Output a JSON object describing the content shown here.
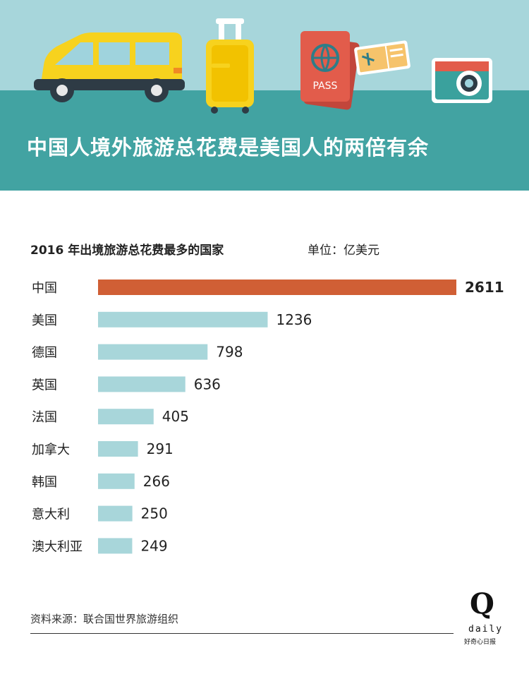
{
  "headline": "中国人境外旅游总花费是美国人的两倍有余",
  "passport_text": "PASS",
  "chart_data": {
    "type": "bar",
    "orientation": "horizontal",
    "title": "2016 年出境旅游总花费最多的国家",
    "unit": "单位：亿美元",
    "categories": [
      "中国",
      "美国",
      "德国",
      "英国",
      "法国",
      "加拿大",
      "韩国",
      "意大利",
      "澳大利亚"
    ],
    "values": [
      2611,
      1236,
      798,
      636,
      405,
      291,
      266,
      250,
      249
    ],
    "highlight_index": 0,
    "xlim": [
      0,
      2611
    ],
    "grid": false,
    "legend": "none"
  },
  "source": "资料来源：联合国世界旅游组织",
  "logo": {
    "mark": "Q",
    "word": "daily",
    "cn": "好奇心日报"
  },
  "colors": {
    "sky": "#a7d6db",
    "band": "#42a3a2",
    "highlight_bar": "#d05f35",
    "bar": "#a8d6da"
  },
  "icons": [
    "van-icon",
    "suitcase-icon",
    "passport-icon",
    "ticket-icon",
    "camera-icon"
  ]
}
